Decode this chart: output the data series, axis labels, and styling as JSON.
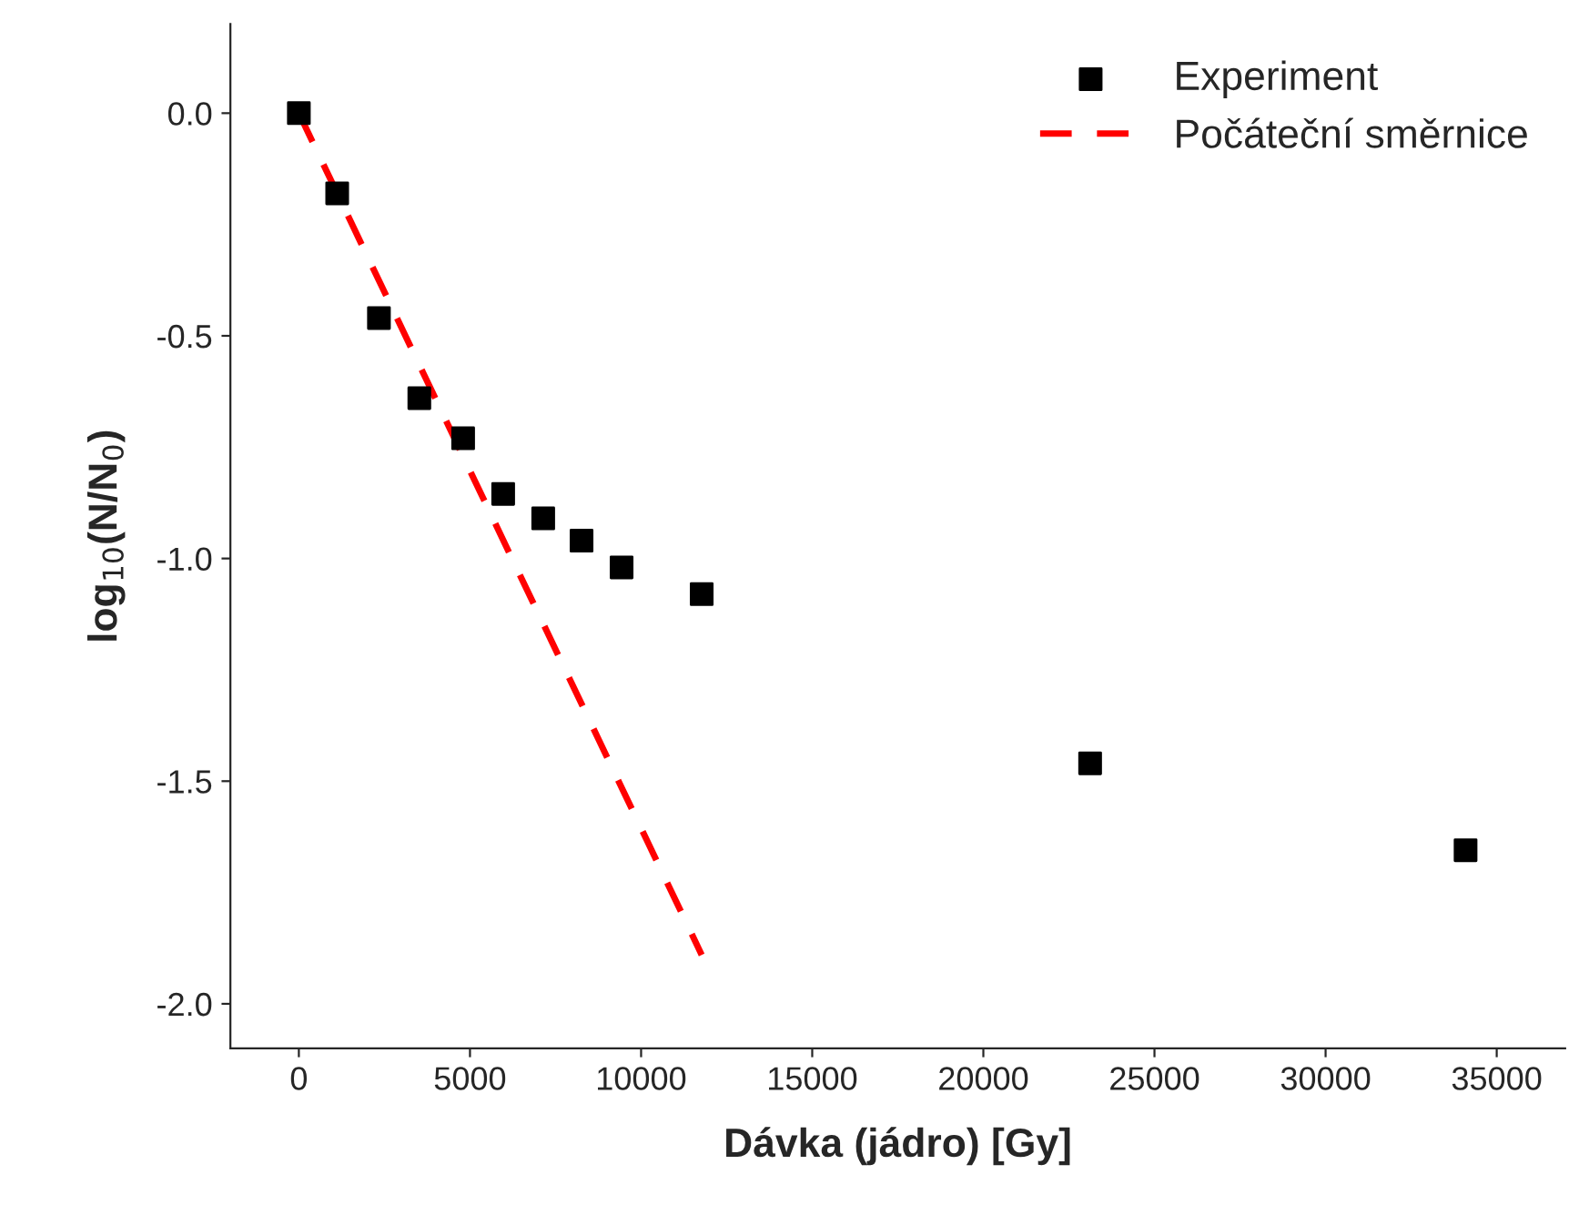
{
  "chart_data": {
    "type": "scatter",
    "xlabel": "Dávka (jádro) [Gy]",
    "ylabel": "log$_{10}$(N/N$_{0}$)",
    "series": [
      {
        "name": "Experiment",
        "color": "#000000",
        "marker": "square",
        "x": [
          0,
          1120,
          2340,
          3520,
          4800,
          5970,
          7140,
          8260,
          9430,
          11770,
          23120,
          34090
        ],
        "values": [
          0,
          -0.18,
          -0.46,
          -0.64,
          -0.73,
          -0.855,
          -0.91,
          -0.96,
          -1.02,
          -1.08,
          -1.46,
          -1.655
        ]
      },
      {
        "name": "Počáteční směrnice",
        "type": "line",
        "color": "#ff0000",
        "line_style": "dashed",
        "marker": "none",
        "x": [
          0,
          11770
        ],
        "values": [
          0,
          -1.89
        ]
      }
    ],
    "xlim": [
      -2000,
      37000
    ],
    "ylim": [
      -2.1,
      0.2
    ],
    "xticks": [
      0,
      5000,
      10000,
      15000,
      20000,
      25000,
      30000,
      35000
    ],
    "yticks": [
      {
        "value": 0,
        "label": "0.0"
      },
      {
        "value": -0.5,
        "label": "-0.5"
      },
      {
        "value": -1,
        "label": "-1.0"
      },
      {
        "value": -1.5,
        "label": "-1.5"
      },
      {
        "value": -2,
        "label": "-2.0"
      }
    ],
    "grid": false,
    "legend": "top right"
  }
}
